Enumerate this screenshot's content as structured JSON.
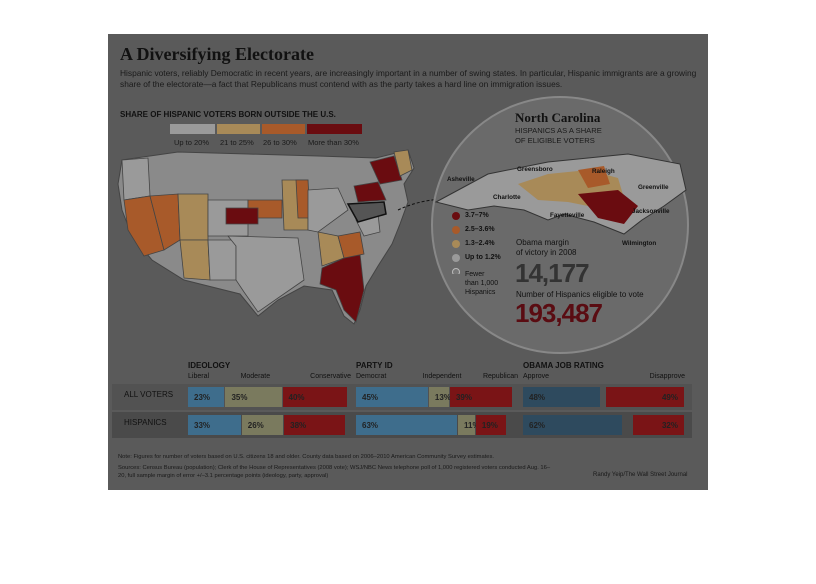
{
  "title": "A Diversifying Electorate",
  "dek": "Hispanic voters, reliably Democratic in recent years, are increasingly important in a number of swing states. In particular, Hispanic immigrants are a growing share of the electorate—a fact that Republicans must contend with as the party takes a hard line on immigration issues.",
  "map": {
    "heading": "SHARE OF HISPANIC VOTERS BORN OUTSIDE THE U.S.",
    "legend": [
      {
        "label": "Up to 20%",
        "color": "#9a9a9a"
      },
      {
        "label": "21 to 25%",
        "color": "#a88a58"
      },
      {
        "label": "26 to 30%",
        "color": "#a85a2a"
      },
      {
        "label": "More than 30%",
        "color": "#6a0c10"
      }
    ]
  },
  "nc": {
    "title": "North Carolina",
    "subtitle_line1": "HISPANICS AS A SHARE",
    "subtitle_line2": "OF ELIGIBLE VOTERS",
    "cities": [
      "Asheville",
      "Greensboro",
      "Raleigh",
      "Charlotte",
      "Greenville",
      "Fayetteville",
      "Jacksonville",
      "Wilmington"
    ],
    "legend": [
      {
        "label": "3.7–7%",
        "color": "#6a0c10"
      },
      {
        "label": "2.5–3.6%",
        "color": "#a85a2a"
      },
      {
        "label": "1.3–2.4%",
        "color": "#a88a58"
      },
      {
        "label": "Up to 1.2%",
        "color": "#9a9a9a"
      }
    ],
    "fewer_line1": "Fewer",
    "fewer_line2": "than 1,000",
    "fewer_line3": "Hispanics",
    "margin_label_line1": "Obama margin",
    "margin_label_line2": "of victory in 2008",
    "margin_value": "14,177",
    "eligible_label": "Number of Hispanics eligible to vote",
    "eligible_value": "193,487"
  },
  "chart_data": {
    "type": "bar",
    "orientation": "horizontal-stacked",
    "rows": [
      "ALL VOTERS",
      "HISPANICS"
    ],
    "panels": [
      {
        "title": "IDEOLOGY",
        "series": [
          {
            "name": "Liberal",
            "values": [
              23,
              33
            ],
            "labels": [
              "23%",
              "33%"
            ],
            "color": "#3e6d8c"
          },
          {
            "name": "Moderate",
            "values": [
              35,
              26
            ],
            "labels": [
              "35%",
              "26%"
            ],
            "color": "#7a7a5e"
          },
          {
            "name": "Conservative",
            "values": [
              40,
              38
            ],
            "labels": [
              "40%",
              "38%"
            ],
            "color": "#7a1416"
          }
        ]
      },
      {
        "title": "PARTY ID",
        "series": [
          {
            "name": "Democrat",
            "values": [
              45,
              63
            ],
            "labels": [
              "45%",
              "63%"
            ],
            "color": "#3e6d8c"
          },
          {
            "name": "Independent",
            "values": [
              13,
              11
            ],
            "labels": [
              "13%",
              "11%"
            ],
            "color": "#7a7a5e"
          },
          {
            "name": "Republican",
            "values": [
              39,
              19
            ],
            "labels": [
              "39%",
              "19%"
            ],
            "color": "#7a1416"
          }
        ]
      },
      {
        "title": "OBAMA JOB RATING",
        "series": [
          {
            "name": "Approve",
            "values": [
              48,
              62
            ],
            "labels": [
              "48%",
              "62%"
            ],
            "color": "#2e4a5e"
          },
          {
            "name": "Disapprove",
            "values": [
              49,
              32
            ],
            "labels": [
              "49%",
              "32%"
            ],
            "color": "#7a1416"
          }
        ]
      }
    ]
  },
  "footer": {
    "note": "Note: Figures for number of voters based on U.S. citizens 18 and older. County data based on 2006–2010 American Community Survey estimates.",
    "sources": "Sources: Census Bureau (population); Clerk of the House of Representatives (2008 vote); WSJ/NBC News telephone poll of 1,000 registered voters conducted Aug. 16–20, full sample margin of error +/–3.1 percentage points (ideology, party, approval)",
    "credit": "Randy Yeip/The Wall Street Journal"
  }
}
